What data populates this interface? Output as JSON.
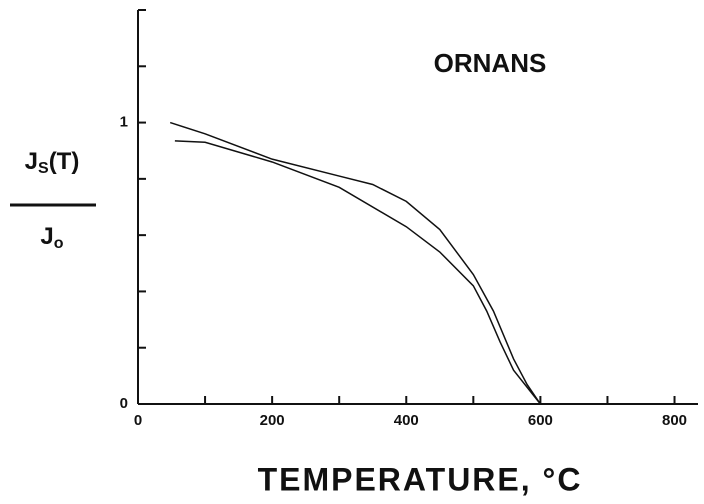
{
  "chart_data": {
    "type": "line",
    "title": "ORNANS",
    "xlabel": "TEMPERATURE, °C",
    "ylabel": {
      "numerator": [
        "J",
        "S",
        "(T)"
      ],
      "denominator": [
        "J",
        "o"
      ]
    },
    "xlim": [
      0,
      835
    ],
    "xticks": [
      0,
      200,
      400,
      600,
      800
    ],
    "xminor": [
      100,
      300,
      500,
      700
    ],
    "ylim": [
      0,
      1.4
    ],
    "yticks": [
      0,
      1
    ],
    "yminor": [
      0.2,
      0.4,
      0.6,
      0.8,
      1.2,
      1.4
    ],
    "series": [
      {
        "color": "#111111",
        "x": [
          48,
          100,
          200,
          300,
          350,
          400,
          450,
          500,
          530,
          560,
          580,
          600
        ],
        "values": [
          1.0,
          0.96,
          0.87,
          0.81,
          0.78,
          0.72,
          0.62,
          0.46,
          0.33,
          0.16,
          0.07,
          0
        ]
      },
      {
        "color": "#111111",
        "x": [
          55,
          100,
          200,
          300,
          400,
          450,
          500,
          520,
          540,
          560,
          600
        ],
        "values": [
          0.935,
          0.93,
          0.86,
          0.77,
          0.63,
          0.54,
          0.42,
          0.33,
          0.22,
          0.12,
          0
        ]
      }
    ]
  }
}
